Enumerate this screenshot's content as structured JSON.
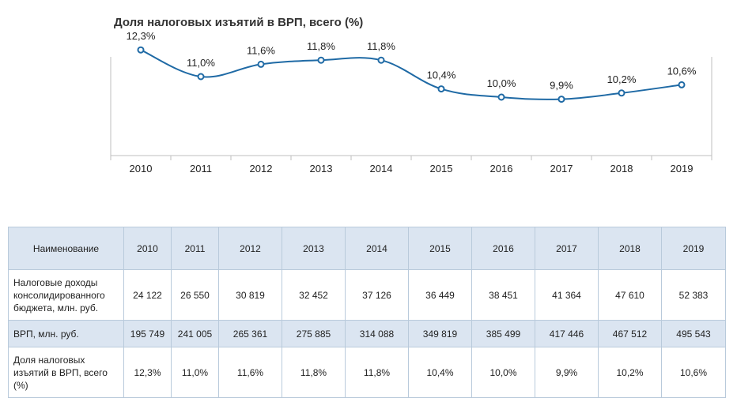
{
  "chart_data": {
    "type": "line",
    "title": "Доля налоговых изъятий в ВРП, всего (%)",
    "categories": [
      "2010",
      "2011",
      "2012",
      "2013",
      "2014",
      "2015",
      "2016",
      "2017",
      "2018",
      "2019"
    ],
    "series": [
      {
        "values": [
          12.3,
          11.0,
          11.6,
          11.8,
          11.8,
          10.4,
          10.0,
          9.9,
          10.2,
          10.6
        ],
        "labels": [
          "12,3%",
          "11,0%",
          "11,6%",
          "11,8%",
          "11,8%",
          "10,4%",
          "10,0%",
          "9,9%",
          "10,2%",
          "10,6%"
        ]
      }
    ],
    "ylim": [
      8.0,
      13.0
    ],
    "grid": false,
    "colors": {
      "line": "#1f6aa5",
      "marker_fill": "#ffffff",
      "axis": "#bfbfbf"
    }
  },
  "table": {
    "header_name": "Наименование",
    "years": [
      "2010",
      "2011",
      "2012",
      "2013",
      "2014",
      "2015",
      "2016",
      "2017",
      "2018",
      "2019"
    ],
    "rows": [
      {
        "name": "Налоговые доходы консолидированного бюджета, млн. руб.",
        "values": [
          "24 122",
          "26 550",
          "30 819",
          "32 452",
          "37 126",
          "36 449",
          "38 451",
          "41 364",
          "47 610",
          "52 383"
        ]
      },
      {
        "name": "ВРП, млн. руб.",
        "values": [
          "195 749",
          "241 005",
          "265 361",
          "275 885",
          "314 088",
          "349 819",
          "385 499",
          "417 446",
          "467 512",
          "495 543"
        ]
      },
      {
        "name": "Доля налоговых изъятий в ВРП, всего (%)",
        "values": [
          "12,3%",
          "11,0%",
          "11,6%",
          "11,8%",
          "11,8%",
          "10,4%",
          "10,0%",
          "9,9%",
          "10,2%",
          "10,6%"
        ]
      }
    ],
    "colors": {
      "header_bg": "#dbe5f1",
      "border": "#b9cadb"
    }
  }
}
